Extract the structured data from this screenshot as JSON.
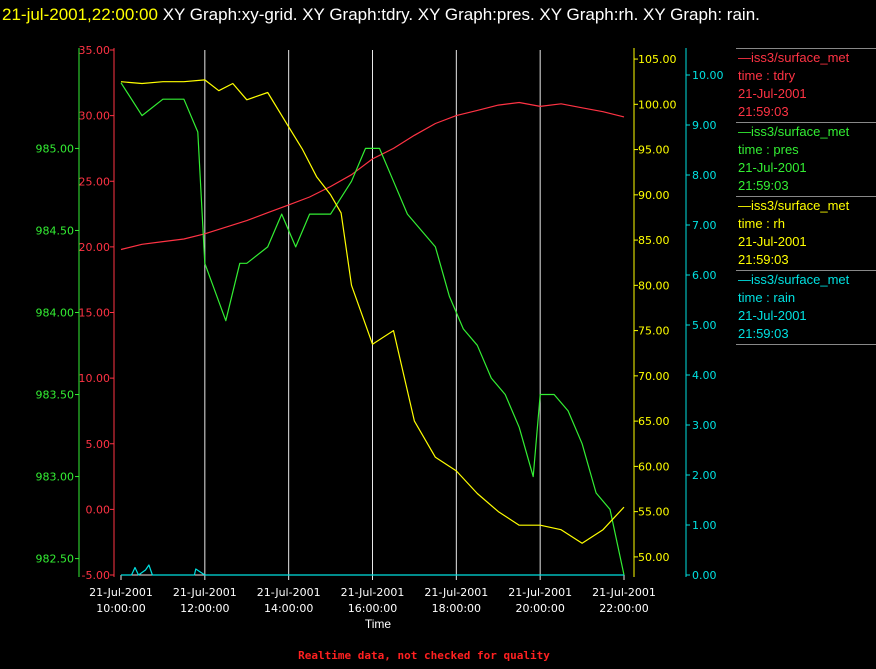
{
  "title": {
    "timestamp": "21-jul-2001,22:00:00",
    "text": "XY Graph:xy-grid.  XY Graph:tdry.  XY Graph:pres.  XY Graph:rh.  XY Graph: rain."
  },
  "colors": {
    "background": "#000000",
    "tdry": "#ff3344",
    "pres": "#33ee33",
    "rh": "#ffff00",
    "rain": "#00e0e0",
    "grid": "#e8e8e8"
  },
  "legend": [
    {
      "source": "iss3/surface_met",
      "var": "time : tdry",
      "date": "21-Jul-2001",
      "time": "21:59:03",
      "color": "#ff3344"
    },
    {
      "source": "iss3/surface_met",
      "var": "time : pres",
      "date": "21-Jul-2001",
      "time": "21:59:03",
      "color": "#33ee33"
    },
    {
      "source": "iss3/surface_met",
      "var": "time : rh",
      "date": "21-Jul-2001",
      "time": "21:59:03",
      "color": "#ffff00"
    },
    {
      "source": "iss3/surface_met",
      "var": "time : rain",
      "date": "21-Jul-2001",
      "time": "21:59:03",
      "color": "#00e0e0"
    }
  ],
  "xlabel": "Time",
  "footer_note": "Realtime data, not checked for quality",
  "chart_data": {
    "type": "line",
    "grid": true,
    "x_range": [
      "2001-07-21 10:00:00",
      "2001-07-21 22:00:00"
    ],
    "x_ticks": [
      {
        "date": "21-Jul-2001",
        "time": "10:00:00"
      },
      {
        "date": "21-Jul-2001",
        "time": "12:00:00"
      },
      {
        "date": "21-Jul-2001",
        "time": "14:00:00"
      },
      {
        "date": "21-Jul-2001",
        "time": "16:00:00"
      },
      {
        "date": "21-Jul-2001",
        "time": "18:00:00"
      },
      {
        "date": "21-Jul-2001",
        "time": "20:00:00"
      },
      {
        "date": "21-Jul-2001",
        "time": "22:00:00"
      }
    ],
    "axes": {
      "tdry": {
        "ylim": [
          -5,
          35
        ],
        "ticks": [
          "-5.00",
          "0.00",
          "5.00",
          "10.00",
          "15.00",
          "20.00",
          "25.00",
          "30.00",
          "35.00"
        ]
      },
      "pres": {
        "ylim": [
          982.4,
          985.6
        ],
        "ticks": [
          "982.50",
          "983.00",
          "983.50",
          "984.00",
          "984.50",
          "985.00"
        ]
      },
      "rh": {
        "ylim": [
          48,
          106
        ],
        "ticks": [
          "50.00",
          "55.00",
          "60.00",
          "65.00",
          "70.00",
          "75.00",
          "80.00",
          "85.00",
          "90.00",
          "95.00",
          "100.00",
          "105.00"
        ]
      },
      "rain": {
        "ylim": [
          0,
          10.5
        ],
        "ticks": [
          "0.00",
          "1.00",
          "2.00",
          "3.00",
          "4.00",
          "5.00",
          "6.00",
          "7.00",
          "8.00",
          "9.00",
          "10.00"
        ]
      }
    },
    "series": [
      {
        "name": "iss3/surface_met time : tdry",
        "axis": "tdry",
        "x": [
          "2001-07-21 10:00",
          "2001-07-21 10:30",
          "2001-07-21 11:00",
          "2001-07-21 11:30",
          "2001-07-21 12:00",
          "2001-07-21 12:30",
          "2001-07-21 13:00",
          "2001-07-21 13:30",
          "2001-07-21 14:00",
          "2001-07-21 14:30",
          "2001-07-21 15:00",
          "2001-07-21 15:30",
          "2001-07-21 16:00",
          "2001-07-21 16:30",
          "2001-07-21 17:00",
          "2001-07-21 17:30",
          "2001-07-21 18:00",
          "2001-07-21 18:30",
          "2001-07-21 19:00",
          "2001-07-21 19:30",
          "2001-07-21 20:00",
          "2001-07-21 20:30",
          "2001-07-21 21:00",
          "2001-07-21 21:30",
          "2001-07-21 22:00"
        ],
        "y": [
          19.8,
          20.2,
          20.4,
          20.6,
          21.0,
          21.5,
          22.0,
          22.6,
          23.2,
          23.8,
          24.6,
          25.5,
          26.7,
          27.5,
          28.5,
          29.4,
          30.0,
          30.4,
          30.8,
          31.0,
          30.7,
          30.9,
          30.6,
          30.3,
          29.9
        ]
      },
      {
        "name": "iss3/surface_met time : pres",
        "axis": "pres",
        "x": [
          "2001-07-21 10:00",
          "2001-07-21 10:30",
          "2001-07-21 11:00",
          "2001-07-21 11:30",
          "2001-07-21 11:50",
          "2001-07-21 12:00",
          "2001-07-21 12:30",
          "2001-07-21 12:50",
          "2001-07-21 13:00",
          "2001-07-21 13:30",
          "2001-07-21 13:50",
          "2001-07-21 14:10",
          "2001-07-21 14:30",
          "2001-07-21 15:00",
          "2001-07-21 15:30",
          "2001-07-21 15:50",
          "2001-07-21 16:10",
          "2001-07-21 16:30",
          "2001-07-21 16:50",
          "2001-07-21 17:10",
          "2001-07-21 17:30",
          "2001-07-21 17:50",
          "2001-07-21 18:10",
          "2001-07-21 18:30",
          "2001-07-21 18:50",
          "2001-07-21 19:10",
          "2001-07-21 19:30",
          "2001-07-21 19:50",
          "2001-07-21 20:00",
          "2001-07-21 20:20",
          "2001-07-21 20:40",
          "2001-07-21 21:00",
          "2001-07-21 21:20",
          "2001-07-21 21:40",
          "2001-07-21 22:00"
        ],
        "y": [
          985.4,
          985.2,
          985.3,
          985.3,
          985.1,
          984.3,
          983.95,
          984.3,
          984.3,
          984.4,
          984.6,
          984.4,
          984.6,
          984.6,
          984.8,
          985.0,
          985.0,
          984.8,
          984.6,
          984.5,
          984.4,
          984.1,
          983.9,
          983.8,
          983.6,
          983.5,
          983.3,
          983.0,
          983.5,
          983.5,
          983.4,
          983.2,
          982.9,
          982.8,
          982.4
        ]
      },
      {
        "name": "iss3/surface_met time : rh",
        "axis": "rh",
        "x": [
          "2001-07-21 10:00",
          "2001-07-21 10:30",
          "2001-07-21 11:00",
          "2001-07-21 11:30",
          "2001-07-21 12:00",
          "2001-07-21 12:20",
          "2001-07-21 12:40",
          "2001-07-21 13:00",
          "2001-07-21 13:30",
          "2001-07-21 14:00",
          "2001-07-21 14:20",
          "2001-07-21 14:40",
          "2001-07-21 15:00",
          "2001-07-21 15:15",
          "2001-07-21 15:30",
          "2001-07-21 16:00",
          "2001-07-21 16:30",
          "2001-07-21 17:00",
          "2001-07-21 17:30",
          "2001-07-21 18:00",
          "2001-07-21 18:30",
          "2001-07-21 19:00",
          "2001-07-21 19:30",
          "2001-07-21 20:00",
          "2001-07-21 20:30",
          "2001-07-21 21:00",
          "2001-07-21 21:30",
          "2001-07-21 22:00"
        ],
        "y": [
          102.5,
          102.3,
          102.5,
          102.5,
          102.7,
          101.5,
          102.3,
          100.5,
          101.3,
          97.5,
          95.0,
          92.0,
          90.0,
          88.0,
          80.0,
          73.5,
          75.0,
          65.0,
          61.0,
          59.5,
          57.0,
          55.0,
          53.5,
          53.5,
          53.0,
          51.5,
          53.0,
          55.5
        ]
      },
      {
        "name": "iss3/surface_met time : rain",
        "axis": "rain",
        "x": [
          "2001-07-21 10:00",
          "2001-07-21 10:15",
          "2001-07-21 10:20",
          "2001-07-21 10:25",
          "2001-07-21 10:35",
          "2001-07-21 10:40",
          "2001-07-21 10:45",
          "2001-07-21 11:00",
          "2001-07-21 11:45",
          "2001-07-21 11:47",
          "2001-07-21 12:00",
          "2001-07-21 22:00"
        ],
        "y": [
          0,
          0,
          0.15,
          0,
          0.1,
          0.2,
          0,
          0,
          0,
          0.12,
          0,
          0
        ]
      }
    ]
  }
}
